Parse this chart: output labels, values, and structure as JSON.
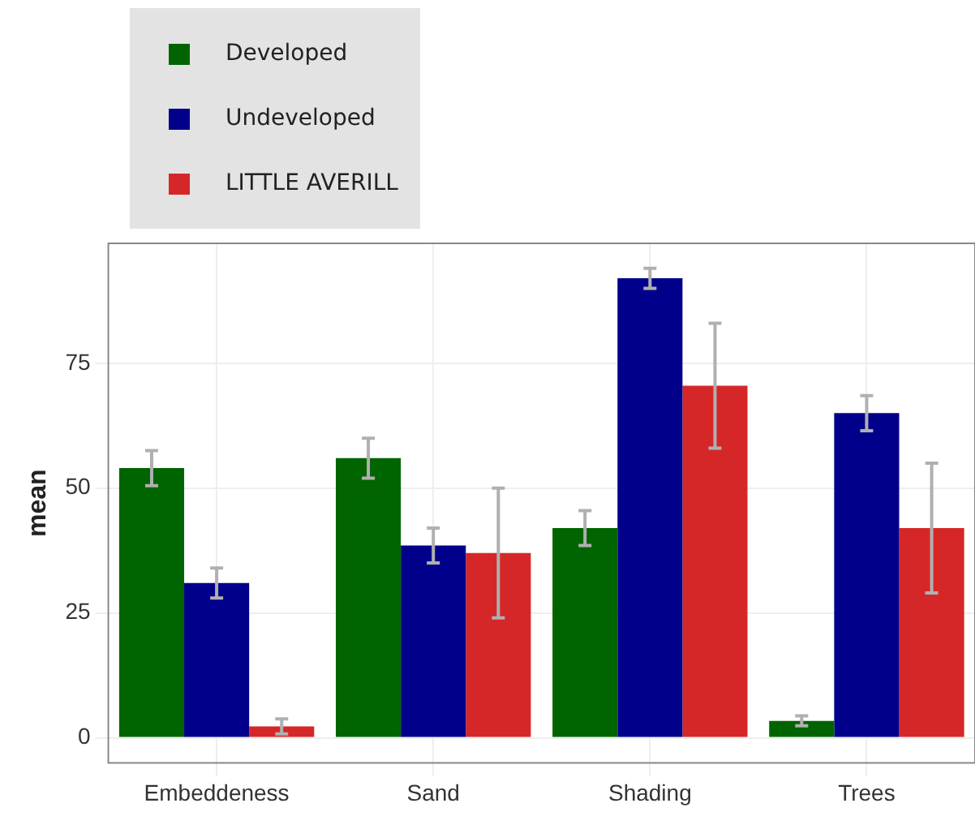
{
  "chart_data": {
    "type": "bar",
    "ylabel": "mean",
    "categories": [
      "Embeddeness",
      "Sand",
      "Shading",
      "Trees"
    ],
    "series": [
      {
        "name": "Developed",
        "color": "#006400",
        "values": [
          54,
          56,
          42,
          3.4
        ],
        "errors": [
          3.5,
          4,
          3.5,
          1
        ]
      },
      {
        "name": "Undeveloped",
        "color": "#00008b",
        "values": [
          31,
          38.5,
          92,
          65
        ],
        "errors": [
          3,
          3.5,
          2,
          3.5
        ]
      },
      {
        "name": "LITTLE AVERILL",
        "color": "#d62728",
        "values": [
          2.3,
          37,
          70.5,
          42
        ],
        "errors": [
          1.5,
          13,
          12.5,
          13
        ]
      }
    ],
    "ylim": [
      -5,
      99
    ],
    "yticks": [
      0,
      25,
      50,
      75
    ],
    "grid": true,
    "legend": "top left"
  }
}
